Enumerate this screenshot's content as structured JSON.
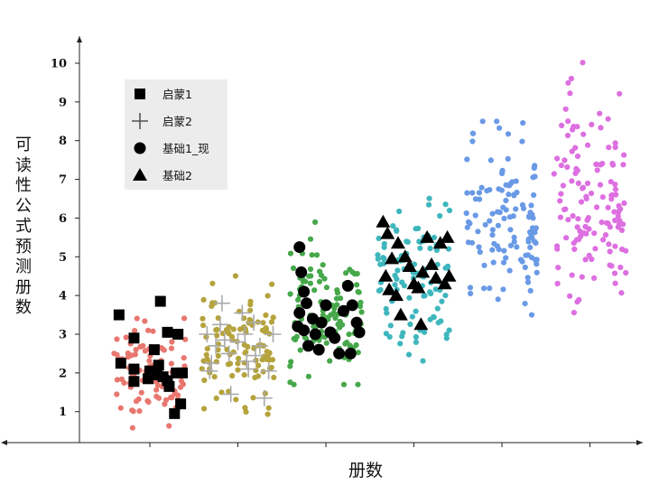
{
  "chart_data": {
    "type": "scatter",
    "title": "",
    "xlabel": "册数",
    "ylabel": "可读性公式预测册数",
    "ylim": [
      0.2,
      10.7
    ],
    "y_ticks": [
      1,
      2,
      3,
      4,
      5,
      6,
      7,
      8,
      9,
      10
    ],
    "x_ticks": [
      1,
      2,
      3,
      4,
      5,
      6
    ],
    "xlim": [
      0.2,
      6.6
    ],
    "grid": false,
    "legend": {
      "position": "top-left",
      "entries": [
        {
          "label": "启蒙1",
          "marker": "square"
        },
        {
          "label": "启蒙2",
          "marker": "plus"
        },
        {
          "label": "基础1_现",
          "marker": "circle"
        },
        {
          "label": "基础2",
          "marker": "triangle"
        }
      ]
    },
    "groups": [
      {
        "x": 1,
        "color": "#e8776f",
        "y_range": [
          0.3,
          3.5
        ],
        "y_center": 2.0,
        "n_points": 100
      },
      {
        "x": 2,
        "color": "#b5a33d",
        "y_range": [
          0.8,
          4.8
        ],
        "y_center": 2.7,
        "n_points": 110
      },
      {
        "x": 3,
        "color": "#46a84a",
        "y_range": [
          1.7,
          6.2
        ],
        "y_center": 3.6,
        "n_points": 110
      },
      {
        "x": 4,
        "color": "#3fb6bd",
        "y_range": [
          1.9,
          7.2
        ],
        "y_center": 4.5,
        "n_points": 110
      },
      {
        "x": 5,
        "color": "#6a9ae6",
        "y_range": [
          2.6,
          8.5
        ],
        "y_center": 5.8,
        "n_points": 120
      },
      {
        "x": 6,
        "color": "#dd6fe0",
        "y_range": [
          3.0,
          10.3
        ],
        "y_center": 6.5,
        "n_points": 130
      }
    ],
    "series": [
      {
        "name": "启蒙1",
        "marker": "square",
        "color": "#000000",
        "x": 1,
        "points": [
          [
            0.65,
            3.5
          ],
          [
            0.82,
            2.9
          ],
          [
            0.67,
            2.25
          ],
          [
            0.82,
            2.1
          ],
          [
            0.82,
            1.78
          ],
          [
            1.12,
            3.85
          ],
          [
            1.05,
            2.6
          ],
          [
            1.0,
            2.05
          ],
          [
            1.08,
            1.95
          ],
          [
            1.2,
            1.8
          ],
          [
            1.2,
            3.05
          ],
          [
            1.32,
            3.0
          ],
          [
            1.3,
            2.0
          ],
          [
            1.35,
            1.2
          ],
          [
            1.28,
            0.95
          ],
          [
            1.15,
            1.9
          ],
          [
            0.98,
            1.85
          ],
          [
            1.1,
            2.2
          ],
          [
            1.22,
            1.65
          ],
          [
            1.37,
            2.0
          ]
        ]
      },
      {
        "name": "启蒙2",
        "marker": "plus",
        "color": "#aaaaaa",
        "x": 2,
        "points": [
          [
            1.65,
            3.0
          ],
          [
            1.7,
            2.25
          ],
          [
            1.68,
            2.05
          ],
          [
            1.75,
            2.7
          ],
          [
            1.8,
            3.25
          ],
          [
            1.82,
            3.8
          ],
          [
            1.85,
            2.85
          ],
          [
            1.9,
            2.5
          ],
          [
            1.92,
            1.45
          ],
          [
            2.0,
            2.8
          ],
          [
            2.05,
            3.55
          ],
          [
            2.08,
            3.0
          ],
          [
            2.1,
            2.3
          ],
          [
            2.12,
            2.1
          ],
          [
            2.2,
            2.45
          ],
          [
            2.25,
            2.7
          ],
          [
            2.3,
            1.35
          ],
          [
            2.35,
            2.05
          ],
          [
            2.18,
            3.3
          ],
          [
            2.4,
            3.0
          ]
        ]
      },
      {
        "name": "基础1_现",
        "marker": "circle",
        "color": "#000000",
        "x": 3,
        "points": [
          [
            2.7,
            5.25
          ],
          [
            2.72,
            4.6
          ],
          [
            2.75,
            4.1
          ],
          [
            2.7,
            3.55
          ],
          [
            2.68,
            3.2
          ],
          [
            2.75,
            3.1
          ],
          [
            2.8,
            2.7
          ],
          [
            2.85,
            3.4
          ],
          [
            2.88,
            3.0
          ],
          [
            2.95,
            3.3
          ],
          [
            3.0,
            3.75
          ],
          [
            3.05,
            3.05
          ],
          [
            3.1,
            2.9
          ],
          [
            3.15,
            2.5
          ],
          [
            3.2,
            3.6
          ],
          [
            3.25,
            4.25
          ],
          [
            3.28,
            2.5
          ],
          [
            3.3,
            3.75
          ],
          [
            3.35,
            3.3
          ],
          [
            3.38,
            3.05
          ],
          [
            2.78,
            3.8
          ],
          [
            2.92,
            2.6
          ]
        ]
      },
      {
        "name": "基础2",
        "marker": "triangle",
        "color": "#000000",
        "x": 4,
        "points": [
          [
            3.65,
            5.9
          ],
          [
            3.7,
            5.6
          ],
          [
            3.68,
            4.5
          ],
          [
            3.72,
            4.15
          ],
          [
            3.8,
            4.0
          ],
          [
            3.85,
            3.5
          ],
          [
            3.82,
            5.35
          ],
          [
            3.9,
            5.0
          ],
          [
            3.95,
            4.75
          ],
          [
            4.0,
            4.3
          ],
          [
            4.05,
            4.2
          ],
          [
            4.08,
            3.25
          ],
          [
            4.15,
            5.5
          ],
          [
            4.2,
            4.8
          ],
          [
            4.25,
            4.45
          ],
          [
            4.3,
            5.35
          ],
          [
            4.35,
            4.3
          ],
          [
            4.38,
            5.5
          ],
          [
            4.4,
            4.5
          ],
          [
            4.1,
            4.6
          ],
          [
            3.75,
            4.95
          ]
        ]
      }
    ]
  }
}
